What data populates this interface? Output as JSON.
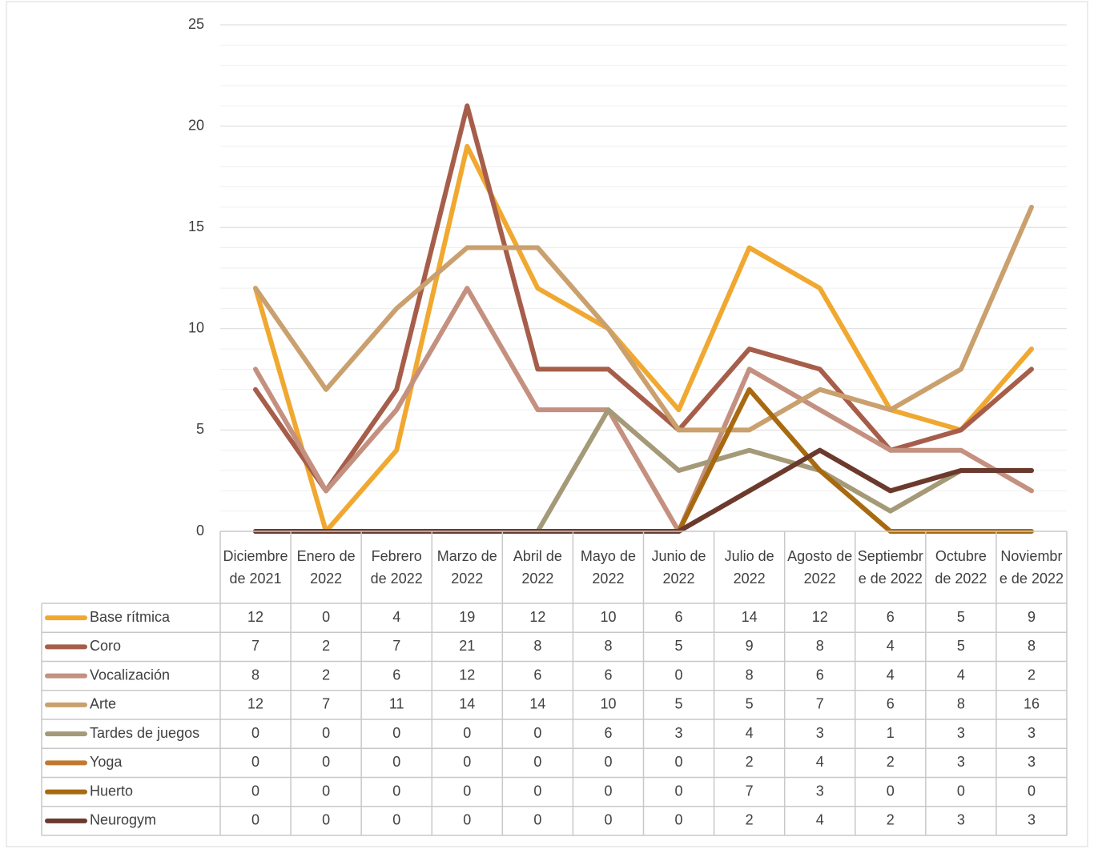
{
  "chart_data": {
    "type": "line",
    "categories": [
      "Diciembre de 2021",
      "Enero de 2022",
      "Febrero de 2022",
      "Marzo de 2022",
      "Abril de 2022",
      "Mayo de 2022",
      "Junio de 2022",
      "Julio de 2022",
      "Agosto de 2022",
      "Septiembre de 2022",
      "Octubre de 2022",
      "Noviembre de 2022"
    ],
    "series": [
      {
        "name": "Base rítmica",
        "color": "#f0a830",
        "values": [
          12,
          0,
          4,
          19,
          12,
          10,
          6,
          14,
          12,
          6,
          5,
          9
        ]
      },
      {
        "name": "Coro",
        "color": "#a65e4a",
        "values": [
          7,
          2,
          7,
          21,
          8,
          8,
          5,
          9,
          8,
          4,
          5,
          8
        ]
      },
      {
        "name": "Vocalización",
        "color": "#c4907f",
        "values": [
          8,
          2,
          6,
          12,
          6,
          6,
          0,
          8,
          6,
          4,
          4,
          2
        ]
      },
      {
        "name": "Arte",
        "color": "#c9a06e",
        "values": [
          12,
          7,
          11,
          14,
          14,
          10,
          5,
          5,
          7,
          6,
          8,
          16
        ]
      },
      {
        "name": "Tardes de juegos",
        "color": "#a49a78",
        "values": [
          0,
          0,
          0,
          0,
          0,
          6,
          3,
          4,
          3,
          1,
          3,
          3
        ]
      },
      {
        "name": "Yoga",
        "color": "#c07a30",
        "values": [
          0,
          0,
          0,
          0,
          0,
          0,
          0,
          2,
          4,
          2,
          3,
          3
        ]
      },
      {
        "name": "Huerto",
        "color": "#a86a10",
        "values": [
          0,
          0,
          0,
          0,
          0,
          0,
          0,
          7,
          3,
          0,
          0,
          0
        ]
      },
      {
        "name": "Neurogym",
        "color": "#6b3a2e",
        "values": [
          0,
          0,
          0,
          0,
          0,
          0,
          0,
          2,
          4,
          2,
          3,
          3
        ]
      }
    ],
    "ylim": [
      0,
      25
    ],
    "yticks": [
      0,
      5,
      10,
      15,
      20,
      25
    ],
    "minor_yticks": [
      1,
      2,
      3,
      4,
      6,
      7,
      8,
      9,
      11,
      12,
      13,
      14,
      16,
      17,
      18,
      19,
      21,
      22,
      23,
      24
    ],
    "grid": true,
    "data_table": true
  }
}
